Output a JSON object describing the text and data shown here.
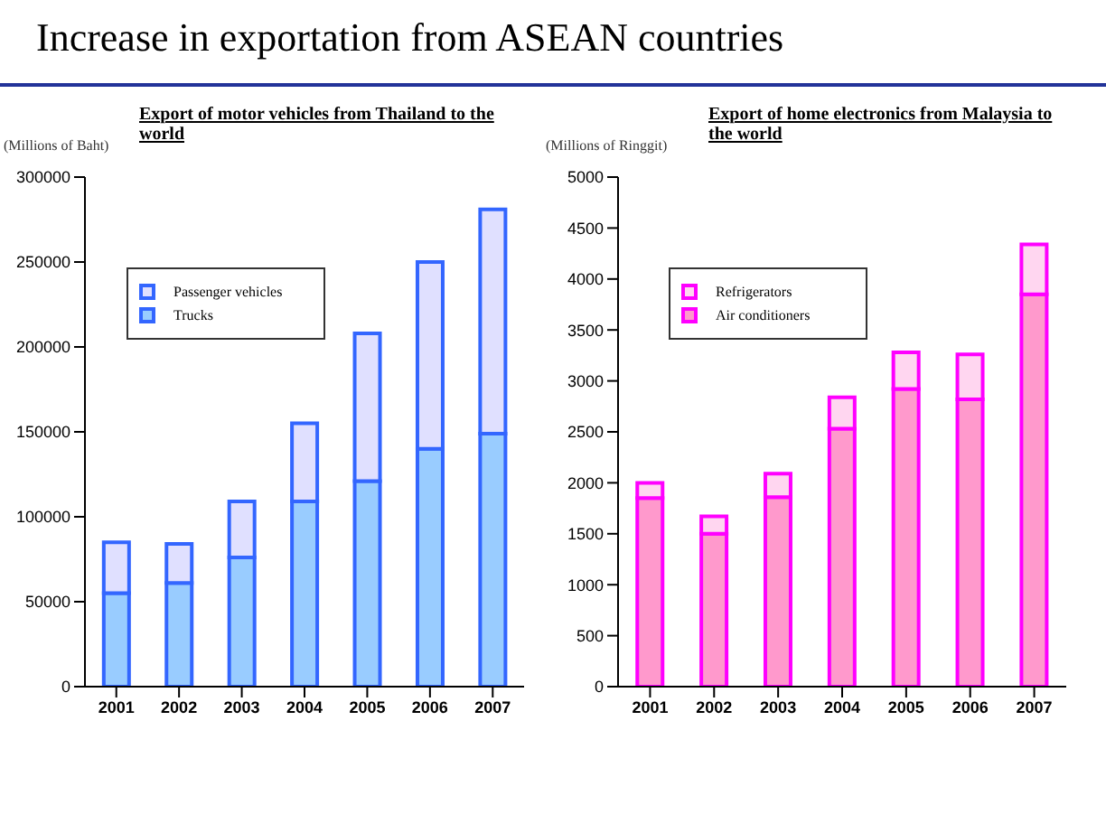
{
  "chart_data": [
    {
      "type": "bar",
      "stacked": true,
      "annotations": [
        "Increase in exportation from ASEAN countries"
      ],
      "title": "Export of motor vehicles from Thailand to the world",
      "ylabel": "(Millions of Baht)",
      "categories": [
        "2001",
        "2002",
        "2003",
        "2004",
        "2005",
        "2006",
        "2007"
      ],
      "series": [
        {
          "name": "Trucks",
          "color": "#99ccff",
          "values": [
            55000,
            61000,
            76000,
            109000,
            121000,
            140000,
            149000
          ]
        },
        {
          "name": "Passenger vehicles",
          "color": "#e0e0ff",
          "values": [
            30000,
            23000,
            33000,
            46000,
            87000,
            110000,
            132000
          ]
        }
      ],
      "ylim": [
        0,
        300000
      ],
      "yticks": [
        0,
        50000,
        100000,
        150000,
        200000,
        250000,
        300000
      ],
      "legend": "left",
      "grid": false
    },
    {
      "type": "bar",
      "stacked": true,
      "title": "Export of home electronics from Malaysia to the world",
      "ylabel": "(Millions of Ringgit)",
      "categories": [
        "2001",
        "2002",
        "2003",
        "2004",
        "2005",
        "2006",
        "2007"
      ],
      "series": [
        {
          "name": "Air conditioners",
          "color": "#ff99cc",
          "values": [
            1850,
            1500,
            1860,
            2530,
            2920,
            2820,
            3850
          ]
        },
        {
          "name": "Refrigerators",
          "color": "#ffd6f0",
          "values": [
            150,
            170,
            230,
            310,
            360,
            440,
            490
          ]
        }
      ],
      "ylim": [
        0,
        5000
      ],
      "yticks": [
        0,
        500,
        1000,
        1500,
        2000,
        2500,
        3000,
        3500,
        4000,
        4500,
        5000
      ],
      "legend": "left",
      "grid": false
    }
  ]
}
